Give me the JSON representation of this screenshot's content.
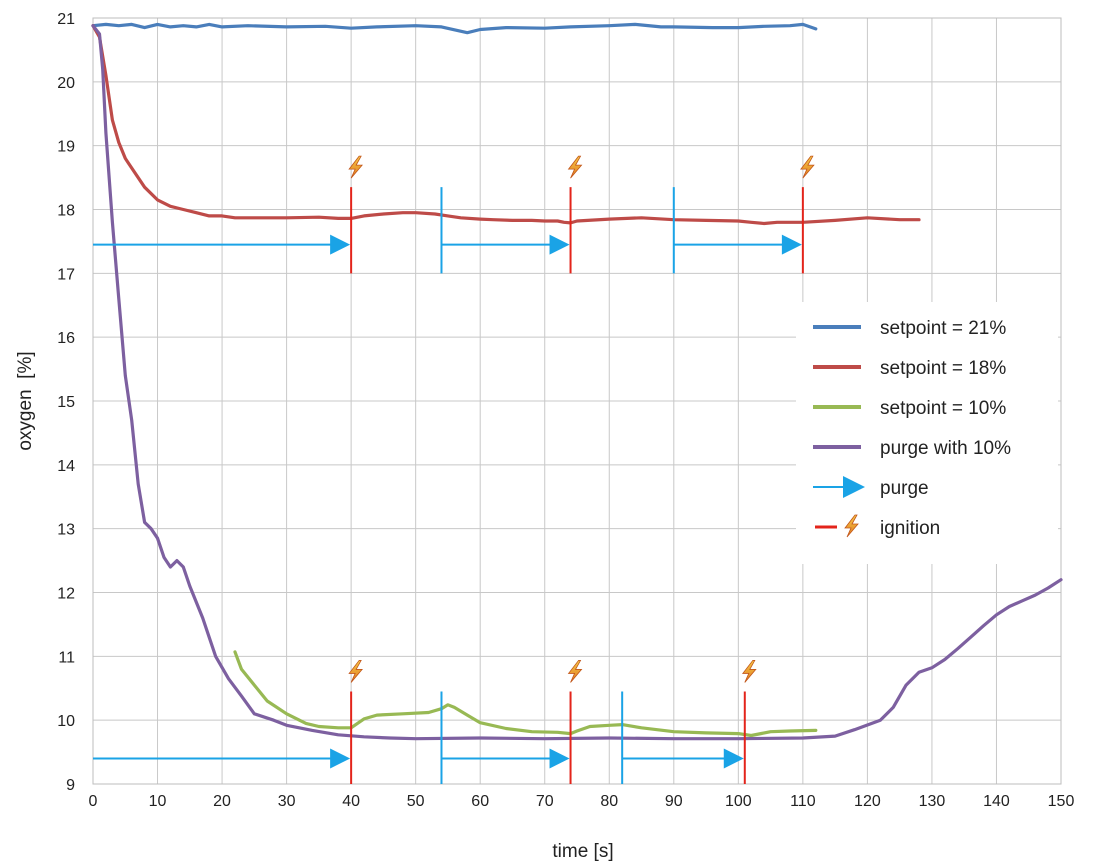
{
  "chart_data": {
    "type": "line",
    "title": "",
    "xlabel": "time [s]",
    "ylabel": "oxygen  [%]",
    "xlim": [
      0,
      150
    ],
    "ylim": [
      9,
      21
    ],
    "xticks": [
      "0",
      "10",
      "20",
      "30",
      "40",
      "50",
      "60",
      "70",
      "80",
      "90",
      "100",
      "110",
      "120",
      "130",
      "140",
      "150"
    ],
    "yticks": [
      "9",
      "10",
      "11",
      "12",
      "13",
      "14",
      "15",
      "16",
      "17",
      "18",
      "19",
      "20",
      "21"
    ],
    "grid": true,
    "legend_position": "right",
    "series": [
      {
        "name": "setpoint = 21%",
        "color": "#4a7ebb",
        "x": [
          0,
          2,
          4,
          6,
          8,
          10,
          12,
          14,
          16,
          18,
          20,
          24,
          30,
          36,
          40,
          44,
          50,
          54,
          58,
          60,
          64,
          70,
          74,
          80,
          84,
          88,
          90,
          96,
          100,
          104,
          108,
          110,
          112
        ],
        "y": [
          20.88,
          20.9,
          20.88,
          20.9,
          20.85,
          20.9,
          20.86,
          20.88,
          20.86,
          20.9,
          20.86,
          20.88,
          20.86,
          20.87,
          20.84,
          20.86,
          20.88,
          20.86,
          20.77,
          20.82,
          20.85,
          20.84,
          20.86,
          20.88,
          20.9,
          20.86,
          20.86,
          20.85,
          20.85,
          20.87,
          20.88,
          20.9,
          20.83
        ]
      },
      {
        "name": "setpoint = 18%",
        "color": "#be4b48",
        "x": [
          0,
          1,
          2,
          3,
          4,
          5,
          6,
          8,
          10,
          12,
          14,
          16,
          18,
          20,
          22,
          25,
          30,
          35,
          38,
          40,
          42,
          45,
          48,
          50,
          53,
          55,
          57,
          60,
          62,
          65,
          68,
          70,
          72,
          73,
          74,
          75,
          80,
          85,
          90,
          95,
          100,
          102,
          104,
          106,
          110,
          115,
          120,
          125,
          128
        ],
        "y": [
          20.88,
          20.7,
          20.1,
          19.4,
          19.05,
          18.8,
          18.65,
          18.35,
          18.15,
          18.05,
          18.0,
          17.95,
          17.9,
          17.9,
          17.87,
          17.87,
          17.87,
          17.88,
          17.86,
          17.86,
          17.9,
          17.93,
          17.95,
          17.95,
          17.93,
          17.9,
          17.87,
          17.85,
          17.84,
          17.83,
          17.83,
          17.82,
          17.82,
          17.8,
          17.79,
          17.82,
          17.85,
          17.87,
          17.84,
          17.83,
          17.82,
          17.8,
          17.78,
          17.8,
          17.8,
          17.83,
          17.87,
          17.84,
          17.84
        ]
      },
      {
        "name": "setpoint = 10%",
        "color": "#98b954",
        "x": [
          22,
          23,
          25,
          27,
          30,
          33,
          35,
          38,
          40,
          42,
          44,
          48,
          52,
          54,
          55,
          56,
          58,
          60,
          64,
          68,
          72,
          74,
          75,
          77,
          80,
          82,
          85,
          90,
          95,
          100,
          102,
          105,
          108,
          112
        ],
        "y": [
          11.07,
          10.8,
          10.55,
          10.3,
          10.1,
          9.95,
          9.9,
          9.88,
          9.88,
          10.02,
          10.08,
          10.1,
          10.12,
          10.18,
          10.24,
          10.2,
          10.08,
          9.96,
          9.87,
          9.82,
          9.81,
          9.79,
          9.83,
          9.9,
          9.92,
          9.93,
          9.88,
          9.82,
          9.8,
          9.79,
          9.76,
          9.82,
          9.83,
          9.84
        ]
      },
      {
        "name": "purge with 10%",
        "color": "#7d60a0",
        "x": [
          0,
          1,
          1.5,
          2,
          3,
          4,
          5,
          6,
          7,
          8,
          9,
          10,
          11,
          12,
          13,
          14,
          15,
          17,
          19,
          21,
          23,
          25,
          28,
          30,
          34,
          38,
          42,
          46,
          50,
          60,
          70,
          80,
          90,
          100,
          110,
          115,
          118,
          122,
          124,
          126,
          128,
          130,
          132,
          134,
          136,
          138,
          140,
          142,
          144,
          146,
          148,
          150
        ],
        "y": [
          20.88,
          20.75,
          20.2,
          19.2,
          17.8,
          16.6,
          15.4,
          14.7,
          13.7,
          13.1,
          13.0,
          12.85,
          12.55,
          12.4,
          12.5,
          12.4,
          12.1,
          11.6,
          11.0,
          10.65,
          10.38,
          10.1,
          10.0,
          9.92,
          9.84,
          9.77,
          9.74,
          9.72,
          9.71,
          9.72,
          9.71,
          9.72,
          9.71,
          9.71,
          9.72,
          9.75,
          9.85,
          10.0,
          10.2,
          10.55,
          10.75,
          10.82,
          10.95,
          11.12,
          11.3,
          11.48,
          11.65,
          11.78,
          11.87,
          11.96,
          12.07,
          12.2
        ]
      }
    ],
    "purge_arrows": {
      "label": "purge",
      "color": "#1aa3e6",
      "segments": [
        {
          "x_start": 0,
          "x_end": 40,
          "y": 17.45,
          "group": "upper"
        },
        {
          "x_start": 54,
          "x_end": 74,
          "y": 17.45,
          "group": "upper"
        },
        {
          "x_start": 90,
          "x_end": 110,
          "y": 17.45,
          "group": "upper"
        },
        {
          "x_start": 0,
          "x_end": 40,
          "y": 9.4,
          "group": "lower"
        },
        {
          "x_start": 54,
          "x_end": 74,
          "y": 9.4,
          "group": "lower"
        },
        {
          "x_start": 82,
          "x_end": 101,
          "y": 9.4,
          "group": "lower"
        }
      ]
    },
    "ignitions": {
      "label": "ignition",
      "color": "#e3241b",
      "events": [
        {
          "x": 40,
          "group": "upper"
        },
        {
          "x": 74,
          "group": "upper"
        },
        {
          "x": 110,
          "group": "upper"
        },
        {
          "x": 40,
          "group": "lower"
        },
        {
          "x": 74,
          "group": "lower"
        },
        {
          "x": 101,
          "group": "lower"
        }
      ]
    },
    "legend_entries": [
      {
        "label": "setpoint =  21%",
        "color": "#4a7ebb",
        "marker": "line"
      },
      {
        "label": "setpoint =  18%",
        "color": "#be4b48",
        "marker": "line"
      },
      {
        "label": "setpoint =  10%",
        "color": "#98b954",
        "marker": "line"
      },
      {
        "label": "purge with 10%",
        "color": "#7d60a0",
        "marker": "line"
      },
      {
        "label": "purge",
        "color": "#1aa3e6",
        "marker": "arrow"
      },
      {
        "label": "ignition",
        "color": "#e3241b",
        "marker": "ignition-icon"
      }
    ]
  }
}
